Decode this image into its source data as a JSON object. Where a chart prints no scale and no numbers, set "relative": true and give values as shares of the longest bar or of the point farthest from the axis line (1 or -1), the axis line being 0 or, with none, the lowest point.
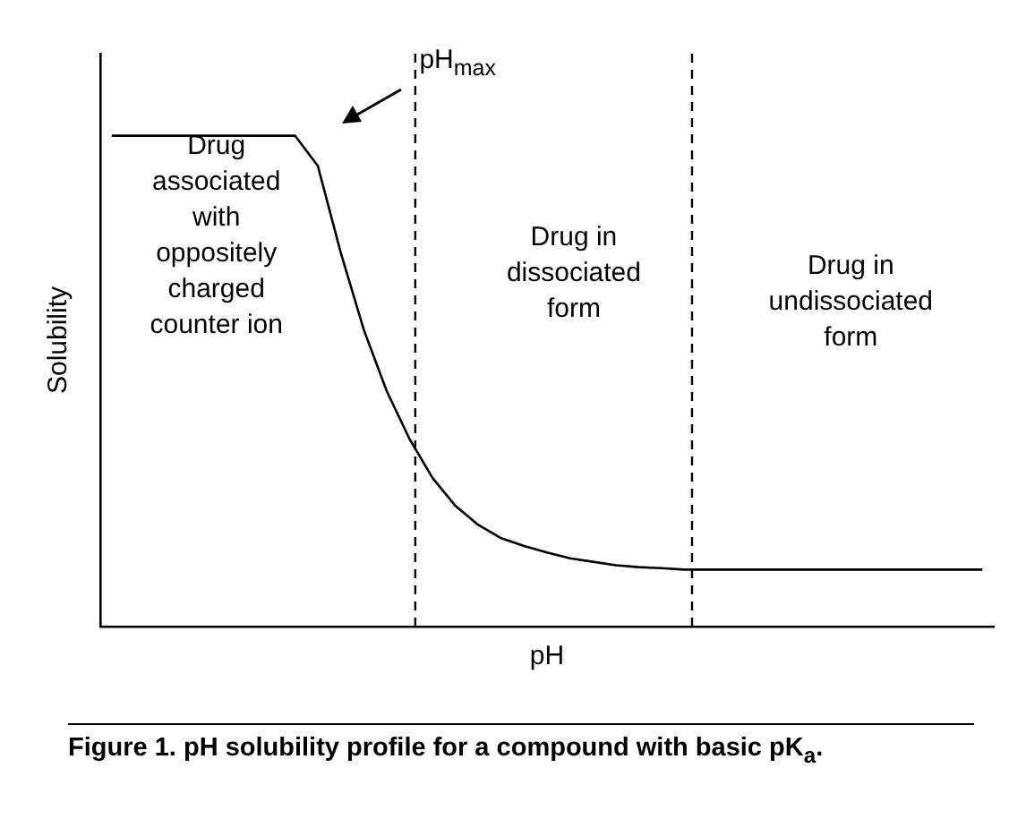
{
  "chart_data": {
    "type": "line",
    "relative": true,
    "xlabel": "pH",
    "ylabel": "Solubility",
    "legend": false,
    "marker": "none",
    "line_style": "solid",
    "categories": [
      null,
      null,
      null,
      null,
      null,
      null,
      null,
      null,
      null,
      null,
      null,
      null,
      null,
      null,
      null,
      null,
      null,
      null,
      null,
      null,
      null,
      null,
      null,
      null,
      null,
      null,
      null,
      null,
      null,
      null,
      null,
      null,
      null,
      null,
      null,
      null,
      null,
      null,
      null
    ],
    "series": [
      {
        "color": "#000000",
        "values": [
          1,
          1,
          1,
          1,
          1,
          1,
          1,
          1,
          1,
          0.938,
          0.761,
          0.605,
          0.48,
          0.382,
          0.303,
          0.246,
          0.207,
          0.18,
          0.164,
          0.151,
          0.139,
          0.132,
          0.125,
          0.121,
          0.119,
          0.116,
          0.116,
          0.116,
          0.116,
          0.116,
          0.116,
          0.116,
          0.116,
          0.116,
          0.116,
          0.116,
          0.116,
          0.116,
          0.116
        ]
      }
    ],
    "annotations": [
      "pH$_{max}$",
      "Drug\nassociated\nwith\noppositely\ncharged\ncounter ion",
      "Drug in\ndissociated\nform",
      "Drug in\nundissociated\nform",
      "Figure 1. pH solubility profile for a compound with basic pK$_{a}$."
    ]
  }
}
